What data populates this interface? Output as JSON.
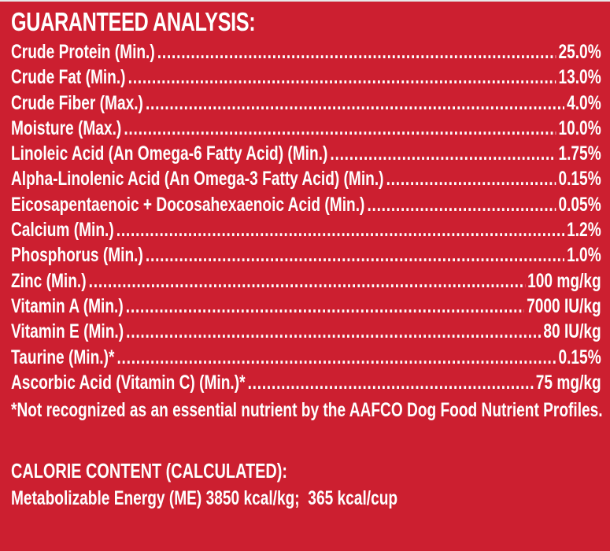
{
  "colors": {
    "background": "#cc1f30",
    "text": "#ffffff"
  },
  "title": "GUARANTEED ANALYSIS:",
  "rows": [
    {
      "label": "Crude Protein (Min.)",
      "value": "25.0%"
    },
    {
      "label": "Crude Fat (Min.)",
      "value": "13.0%"
    },
    {
      "label": "Crude Fiber (Max.)",
      "value": "4.0%"
    },
    {
      "label": "Moisture (Max.)",
      "value": "10.0%"
    },
    {
      "label": "Linoleic Acid (An Omega-6 Fatty Acid) (Min.)",
      "value": "1.75%"
    },
    {
      "label": "Alpha-Linolenic Acid (An Omega-3 Fatty Acid) (Min.)",
      "value": "0.15%"
    },
    {
      "label": "Eicosapentaenoic + Docosahexaenoic Acid (Min.)",
      "value": "0.05%"
    },
    {
      "label": "Calcium (Min.)",
      "value": "1.2%"
    },
    {
      "label": "Phosphorus (Min.)",
      "value": "1.0%"
    },
    {
      "label": "Zinc (Min.)",
      "value": "100 mg/kg"
    },
    {
      "label": "Vitamin A (Min.)",
      "value": "7000 IU/kg"
    },
    {
      "label": "Vitamin E (Min.)",
      "value": "80 IU/kg"
    },
    {
      "label": "Taurine (Min.)*",
      "value": "0.15%"
    },
    {
      "label": "Ascorbic Acid (Vitamin C) (Min.)*",
      "value": "75 mg/kg"
    }
  ],
  "footnote": "*Not recognized as an essential nutrient by the AAFCO Dog Food Nutrient Profiles.",
  "calorie": {
    "title": "CALORIE CONTENT (CALCULATED):",
    "line": "Metabolizable Energy (ME) 3850 kcal/kg;  365 kcal/cup"
  }
}
